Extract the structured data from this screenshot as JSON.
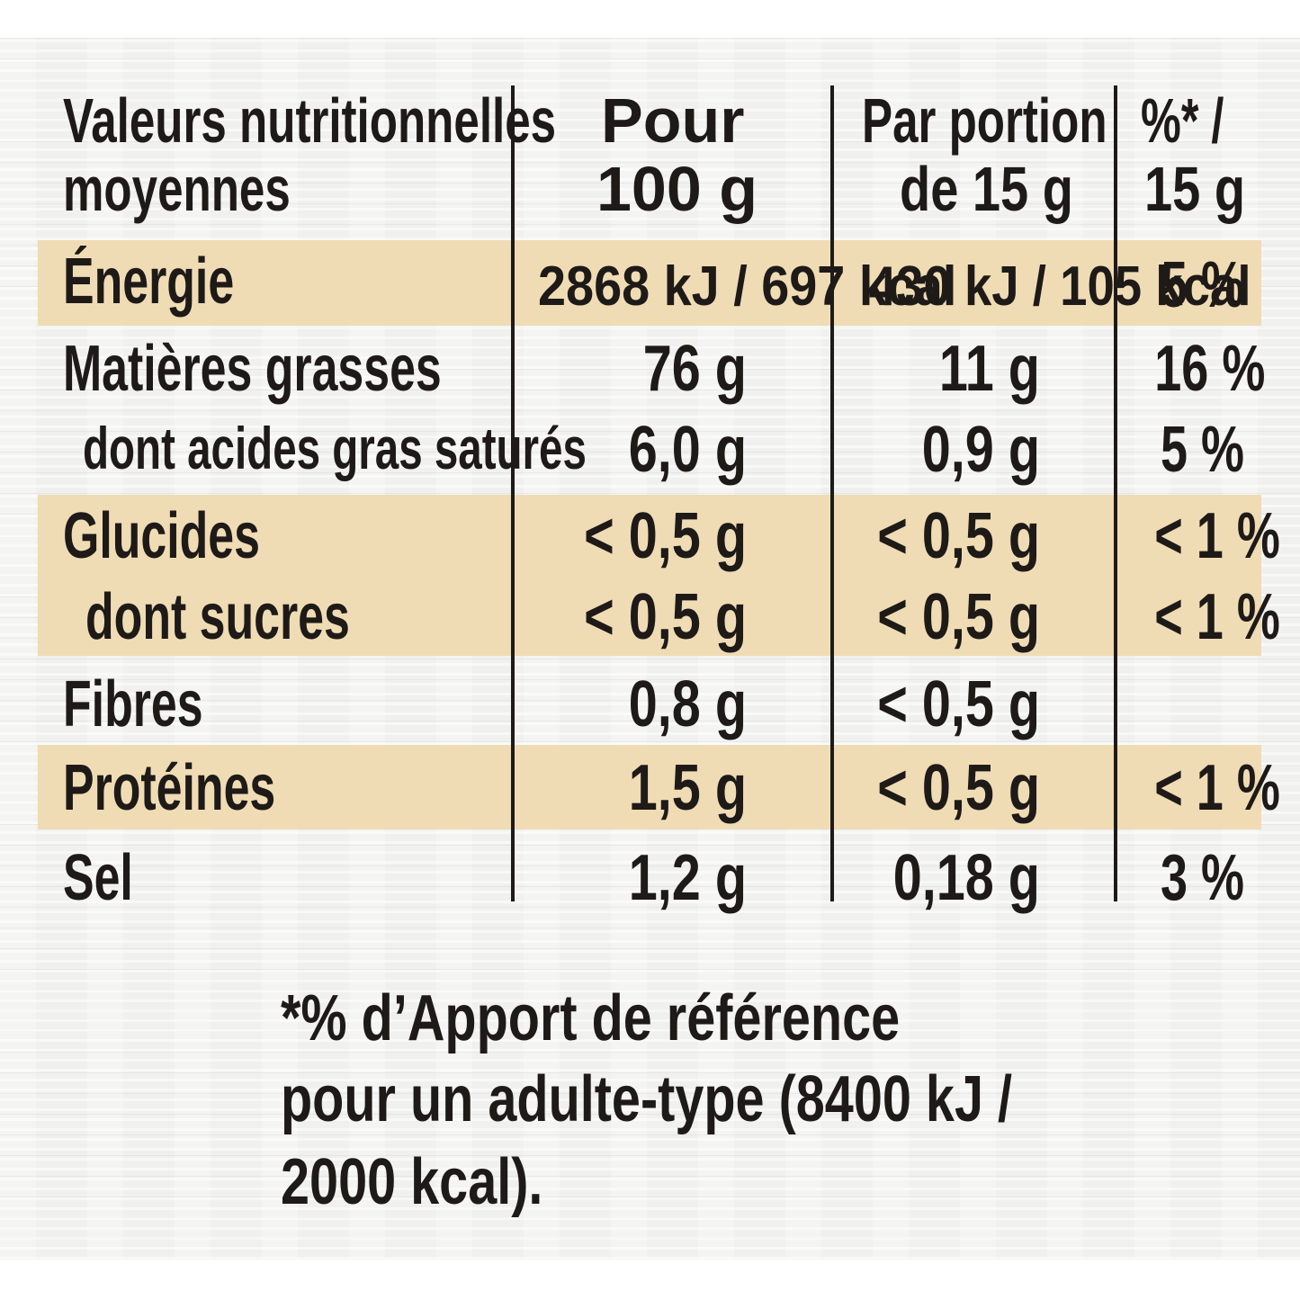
{
  "table": {
    "header": {
      "nutrient": [
        "Valeurs nutritionnelles",
        "moyennes"
      ],
      "per100": [
        "Pour",
        "100 g"
      ],
      "perPortion": [
        "Par portion",
        "de 15 g"
      ],
      "percent": [
        "%* /",
        "15 g"
      ]
    },
    "rows": [
      {
        "label": "Énergie",
        "per100": "2868 kJ / 697 kcal",
        "portion": "430 kJ / 105 kcal",
        "pct": "5 %"
      },
      {
        "label": "Matières grasses",
        "per100": "76 g",
        "portion": "11 g",
        "pct": "16 %"
      },
      {
        "label": "dont acides gras saturés",
        "per100": "6,0 g",
        "portion": "0,9 g",
        "pct": "5 %"
      },
      {
        "label": "Glucides",
        "per100": "< 0,5 g",
        "portion": "< 0,5 g",
        "pct": "< 1 %"
      },
      {
        "label": "dont sucres",
        "per100": "< 0,5 g",
        "portion": "< 0,5 g",
        "pct": "< 1 %"
      },
      {
        "label": "Fibres",
        "per100": "0,8 g",
        "portion": "< 0,5 g",
        "pct": ""
      },
      {
        "label": "Protéines",
        "per100": "1,5 g",
        "portion": "< 0,5 g",
        "pct": "< 1 %"
      },
      {
        "label": "Sel",
        "per100": "1,2 g",
        "portion": "0,18 g",
        "pct": "3 %"
      }
    ]
  },
  "footnote": [
    "*% d’Apport de référence",
    "pour un adulte-type (8400 kJ /",
    "2000 kcal)."
  ],
  "colors": {
    "band": "#f0dcb4",
    "text": "#1e1a18",
    "background": "#f0f0ef"
  }
}
